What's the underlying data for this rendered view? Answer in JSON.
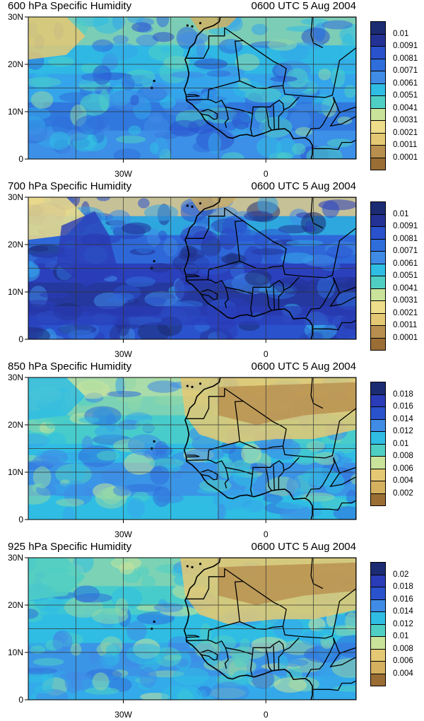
{
  "colors": {
    "scale": [
      "#9a6d35",
      "#b88f4e",
      "#d4b05f",
      "#e5c873",
      "#eedd8a",
      "#c9e39a",
      "#8fd7a8",
      "#4fcfc4",
      "#2fbde3",
      "#35a5ea",
      "#3f8be6",
      "#2f6ddb",
      "#2a52cd",
      "#2a3cb8",
      "#233294",
      "#1c2c73"
    ],
    "coast": "#000000",
    "grid": "#333333"
  },
  "panels": [
    {
      "id": "600",
      "title": "600 hPa Specific Humidity",
      "time": "0600 UTC 5 Aug 2004",
      "ylabels": [
        "30N",
        "20N",
        "10N",
        "0"
      ],
      "xlabels": [
        "30W",
        "0"
      ],
      "colorbar": [
        "0.01",
        "0.0091",
        "0.0081",
        "0.0071",
        "0.0061",
        "0.0051",
        "0.0041",
        "0.0031",
        "0.0021",
        "0.0011",
        "0.0001"
      ]
    },
    {
      "id": "700",
      "title": "700 hPa Specific Humidity",
      "time": "0600 UTC 5 Aug 2004",
      "ylabels": [
        "30N",
        "20N",
        "10N",
        "0"
      ],
      "xlabels": [
        "30W",
        "0"
      ],
      "colorbar": [
        "0.01",
        "0.0091",
        "0.0081",
        "0.0071",
        "0.0061",
        "0.0051",
        "0.0041",
        "0.0031",
        "0.0021",
        "0.0011",
        "0.0001"
      ]
    },
    {
      "id": "850",
      "title": "850 hPa Specific Humidity",
      "time": "0600 UTC 5 Aug 2004",
      "ylabels": [
        "30N",
        "20N",
        "10N",
        "0"
      ],
      "xlabels": [
        "30W",
        "0"
      ],
      "colorbar": [
        "0.018",
        "0.016",
        "0.014",
        "0.012",
        "0.01",
        "0.008",
        "0.006",
        "0.004",
        "0.002"
      ]
    },
    {
      "id": "925",
      "title": "925 hPa Specific Humidity",
      "time": "0600 UTC 5 Aug 2004",
      "ylabels": [
        "30N",
        "20N",
        "10N",
        "0"
      ],
      "xlabels": [
        "30W",
        "0"
      ],
      "colorbar": [
        "0.02",
        "0.018",
        "0.016",
        "0.014",
        "0.012",
        "0.01",
        "0.008",
        "0.006",
        "0.004"
      ]
    }
  ]
}
